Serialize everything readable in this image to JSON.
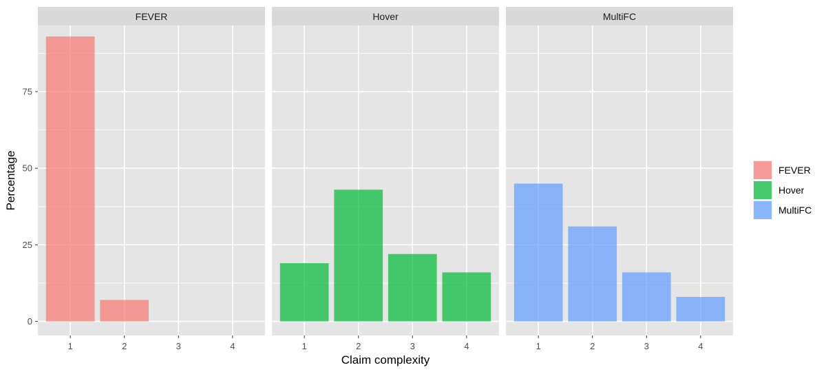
{
  "chart_data": {
    "type": "bar",
    "facet_by": "dataset",
    "xlabel": "Claim complexity",
    "ylabel": "Percentage",
    "categories": [
      "1",
      "2",
      "3",
      "4"
    ],
    "yticks": [
      0,
      25,
      50,
      75
    ],
    "ylim": [
      -4.6,
      96.6
    ],
    "grid": true,
    "legend_position": "right",
    "panels": [
      {
        "name": "FEVER",
        "color": "#F8766D",
        "values": [
          93,
          7,
          0,
          0
        ]
      },
      {
        "name": "Hover",
        "color": "#00BA38",
        "values": [
          19,
          43,
          22,
          16
        ]
      },
      {
        "name": "MultiFC",
        "color": "#619CFF",
        "values": [
          45,
          31,
          16,
          8
        ]
      }
    ],
    "legend": [
      "FEVER",
      "Hover",
      "MultiFC"
    ]
  },
  "colors": {
    "panel_background": "#E5E5E5",
    "strip_background": "#D9D9D9",
    "grid_line": "#FFFFFF",
    "bar_opacity": 0.7
  }
}
